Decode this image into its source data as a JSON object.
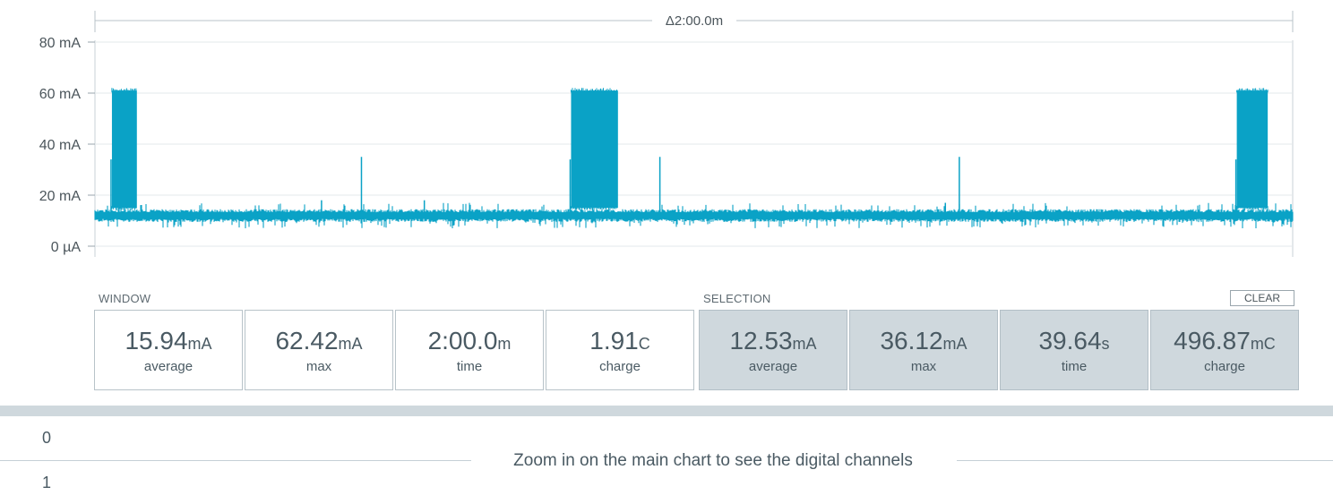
{
  "chart_data": {
    "type": "line",
    "series": [
      {
        "name": "",
        "color": "#0aa2c6"
      }
    ],
    "x_range_min": [
      0,
      120
    ],
    "ylim": [
      0,
      80
    ],
    "yticks": [
      "0 µA",
      "20 mA",
      "40 mA",
      "60 mA",
      "80 mA"
    ],
    "y_tick_values": [
      0,
      20,
      40,
      60,
      80
    ],
    "grid": true,
    "baseline_mA": 13,
    "baseline_noise_mA": [
      9.5,
      14.5
    ],
    "bursts": [
      {
        "start_min": 1.7,
        "end_min": 4.2,
        "level_mA": [
          15,
          61
        ]
      },
      {
        "start_min": 47.7,
        "end_min": 52.4,
        "level_mA": [
          15,
          61
        ]
      },
      {
        "start_min": 114.4,
        "end_min": 117.5,
        "level_mA": [
          15,
          61
        ]
      }
    ],
    "spikes": [
      {
        "x_min": 26.7,
        "y_mA": 35
      },
      {
        "x_min": 56.6,
        "y_mA": 35
      },
      {
        "x_min": 86.6,
        "y_mA": 35
      },
      {
        "x_min": 22.7,
        "y_mA": 18
      },
      {
        "x_min": 33.0,
        "y_mA": 18
      },
      {
        "x_min": 85.2,
        "y_mA": 17
      }
    ],
    "delta_label": "Δ2:00.0m"
  },
  "window": {
    "label": "WINDOW",
    "stats": [
      {
        "value": "15.94",
        "unit": "mA",
        "caption": "average"
      },
      {
        "value": "62.42",
        "unit": "mA",
        "caption": "max"
      },
      {
        "value": "2:00.0",
        "unit": "m",
        "caption": "time"
      },
      {
        "value": "1.91",
        "unit": "C",
        "caption": "charge"
      }
    ]
  },
  "selection": {
    "label": "SELECTION",
    "clear_label": "CLEAR",
    "stats": [
      {
        "value": "12.53",
        "unit": "mA",
        "caption": "average"
      },
      {
        "value": "36.12",
        "unit": "mA",
        "caption": "max"
      },
      {
        "value": "39.64",
        "unit": "s",
        "caption": "time"
      },
      {
        "value": "496.87",
        "unit": "mC",
        "caption": "charge"
      }
    ]
  },
  "digital": {
    "channels": [
      "0",
      "1"
    ],
    "message": "Zoom in on the main chart to see the digital channels"
  }
}
